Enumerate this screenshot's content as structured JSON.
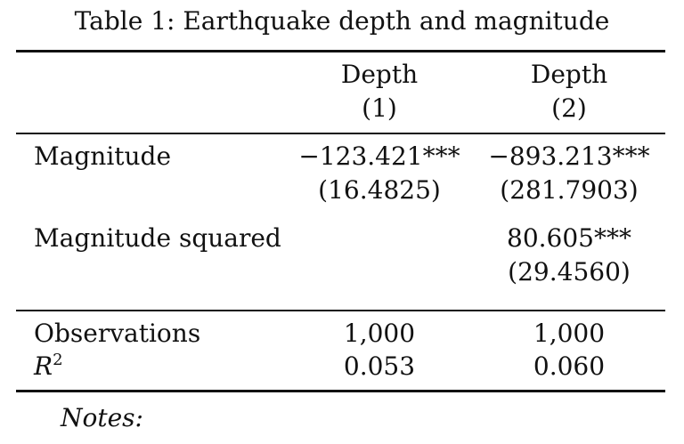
{
  "table": {
    "title": "Table 1: Earthquake depth and magnitude",
    "columns": [
      {
        "label": "Depth",
        "number": "(1)"
      },
      {
        "label": "Depth",
        "number": "(2)"
      }
    ],
    "rows": [
      {
        "label": "Magnitude",
        "coef": [
          "−123.421***",
          "−893.213***"
        ],
        "se": [
          "(16.4825)",
          "(281.7903)"
        ]
      },
      {
        "label": "Magnitude squared",
        "coef": [
          "",
          "80.605***"
        ],
        "se": [
          "",
          "(29.4560)"
        ]
      }
    ],
    "stats": [
      {
        "label": "Observations",
        "values": [
          "1,000",
          "1,000"
        ]
      },
      {
        "label_base": "R",
        "label_sup": "2",
        "values": [
          "0.053",
          "0.060"
        ]
      }
    ],
    "notes": "Notes:"
  }
}
